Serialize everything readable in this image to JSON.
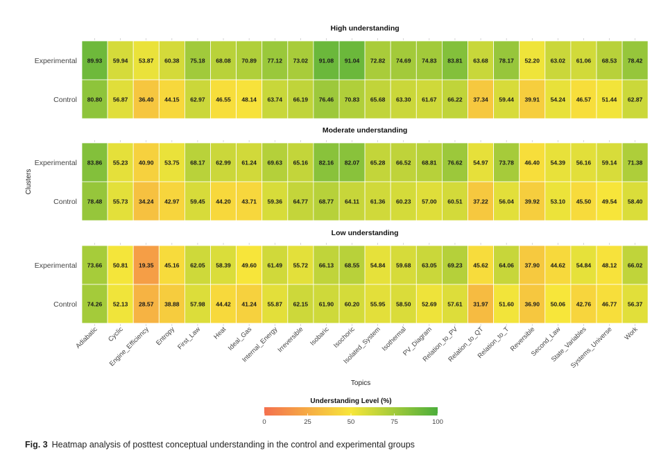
{
  "chart_data": {
    "type": "heatmap",
    "xlabel": "Topics",
    "ylabel": "Clusters",
    "topics": [
      "Adiabatic",
      "Cyclic",
      "Engine_Efficiency",
      "Entropy",
      "First_Law",
      "Heat",
      "Ideal_Gas",
      "Internal_Energy",
      "Irreversible",
      "Isobaric",
      "Isochoric",
      "Isolated_System",
      "Isothermal",
      "PV_Diagram",
      "Relation_to_PV",
      "Relation_to_QT",
      "Relation_to_T",
      "Reversible",
      "Second_Law",
      "State_Variables",
      "Systems_Universe",
      "Work"
    ],
    "panels": [
      {
        "title": "High understanding",
        "rows": [
          {
            "name": "Experimental",
            "values": [
              89.93,
              59.94,
              53.87,
              60.38,
              75.18,
              68.08,
              70.89,
              77.12,
              73.02,
              91.08,
              91.04,
              72.82,
              74.69,
              74.83,
              83.81,
              63.68,
              78.17,
              52.2,
              63.02,
              61.06,
              68.53,
              78.42
            ]
          },
          {
            "name": "Control",
            "values": [
              80.8,
              56.87,
              36.4,
              44.15,
              62.97,
              46.55,
              48.14,
              63.74,
              66.19,
              76.46,
              70.83,
              65.68,
              63.3,
              61.67,
              66.22,
              37.34,
              59.44,
              39.91,
              54.24,
              46.57,
              51.44,
              62.87
            ]
          }
        ]
      },
      {
        "title": "Moderate understanding",
        "rows": [
          {
            "name": "Experimental",
            "values": [
              83.86,
              55.23,
              40.9,
              53.75,
              68.17,
              62.99,
              61.24,
              69.63,
              65.16,
              82.16,
              82.07,
              65.28,
              66.52,
              68.81,
              76.62,
              54.97,
              73.78,
              46.4,
              54.39,
              56.16,
              59.14,
              71.38
            ]
          },
          {
            "name": "Control",
            "values": [
              78.48,
              55.73,
              34.24,
              42.97,
              59.45,
              44.2,
              43.71,
              59.36,
              64.77,
              68.77,
              64.11,
              61.36,
              60.23,
              57.0,
              60.51,
              37.22,
              56.04,
              39.92,
              53.1,
              45.5,
              49.54,
              58.4
            ]
          }
        ]
      },
      {
        "title": "Low understanding",
        "rows": [
          {
            "name": "Experimental",
            "values": [
              73.66,
              50.81,
              19.35,
              45.16,
              62.05,
              58.39,
              49.6,
              61.49,
              55.72,
              66.13,
              68.55,
              54.84,
              59.68,
              63.05,
              69.23,
              45.62,
              64.06,
              37.9,
              44.62,
              54.84,
              48.12,
              66.02
            ]
          },
          {
            "name": "Control",
            "values": [
              74.26,
              52.13,
              28.57,
              38.88,
              57.98,
              44.42,
              41.24,
              55.87,
              62.15,
              61.9,
              60.2,
              55.95,
              58.5,
              52.69,
              57.61,
              31.97,
              51.6,
              36.9,
              50.06,
              42.76,
              46.77,
              56.37
            ]
          }
        ]
      }
    ],
    "legend": {
      "title": "Understanding Level (%)",
      "ticks": [
        0,
        25,
        50,
        75,
        100
      ],
      "range": [
        0,
        100
      ]
    },
    "colorscale": [
      "#f4704e",
      "#f7e63a",
      "#4cae3b"
    ]
  },
  "caption": {
    "label": "Fig. 3",
    "text": "Heatmap analysis of posttest conceptual understanding in the control and experimental groups"
  }
}
